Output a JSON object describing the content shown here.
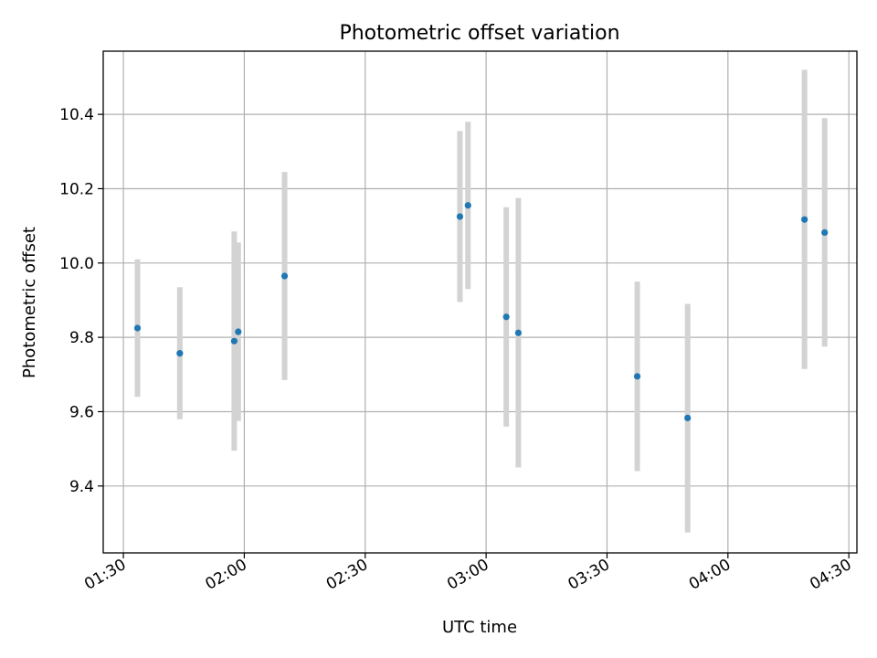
{
  "chart_data": {
    "type": "scatter",
    "title": "Photometric offset variation",
    "xlabel": "UTC time",
    "ylabel": "Photometric offset",
    "x_ticks": [
      "01:30",
      "02:00",
      "02:30",
      "03:00",
      "03:30",
      "04:00",
      "04:30"
    ],
    "y_ticks": [
      "9.4",
      "9.6",
      "9.8",
      "10.0",
      "10.2",
      "10.4"
    ],
    "xlim": [
      "01:25",
      "04:32"
    ],
    "ylim": [
      9.22,
      10.57
    ],
    "grid": true,
    "colors": {
      "marker": "#1f77b4",
      "errorbar": "#d3d3d3",
      "grid": "#b0b0b0",
      "axes": "#000000"
    },
    "points": [
      {
        "x": "01:33:30",
        "y": 9.825,
        "y_low": 9.64,
        "y_high": 10.01
      },
      {
        "x": "01:44:00",
        "y": 9.757,
        "y_low": 9.58,
        "y_high": 9.935
      },
      {
        "x": "01:57:30",
        "y": 9.79,
        "y_low": 9.495,
        "y_high": 10.085
      },
      {
        "x": "01:58:30",
        "y": 9.815,
        "y_low": 9.575,
        "y_high": 10.055
      },
      {
        "x": "02:10:00",
        "y": 9.965,
        "y_low": 9.685,
        "y_high": 10.245
      },
      {
        "x": "02:53:30",
        "y": 10.125,
        "y_low": 9.895,
        "y_high": 10.355
      },
      {
        "x": "02:55:30",
        "y": 10.155,
        "y_low": 9.93,
        "y_high": 10.38
      },
      {
        "x": "03:05:00",
        "y": 9.855,
        "y_low": 9.56,
        "y_high": 10.15
      },
      {
        "x": "03:08:00",
        "y": 9.812,
        "y_low": 9.45,
        "y_high": 10.175
      },
      {
        "x": "03:37:30",
        "y": 9.695,
        "y_low": 9.44,
        "y_high": 9.95
      },
      {
        "x": "03:50:00",
        "y": 9.583,
        "y_low": 9.275,
        "y_high": 9.89
      },
      {
        "x": "04:19:00",
        "y": 10.117,
        "y_low": 9.715,
        "y_high": 10.52
      },
      {
        "x": "04:24:00",
        "y": 10.082,
        "y_low": 9.775,
        "y_high": 10.39
      }
    ]
  }
}
